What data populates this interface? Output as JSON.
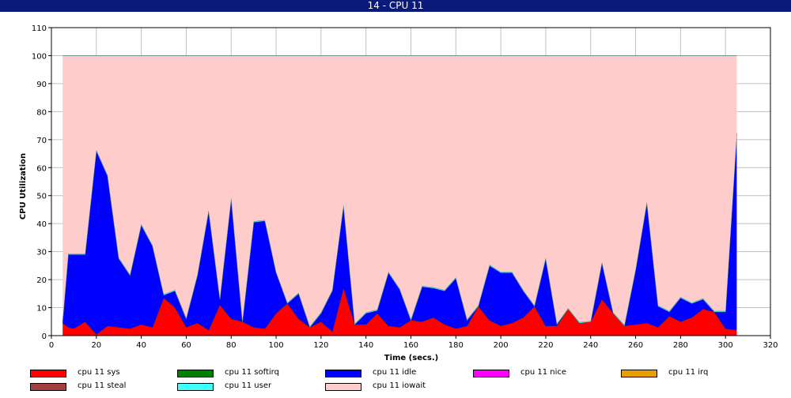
{
  "title": "14 - CPU 11",
  "chart_data": {
    "type": "area",
    "stacked": true,
    "ylabel": "CPU Utilization",
    "xlabel": "Time (secs.)",
    "xlim": [
      0,
      320
    ],
    "ylim": [
      0,
      110
    ],
    "xticks": [
      0,
      20,
      40,
      60,
      80,
      100,
      120,
      140,
      160,
      180,
      200,
      220,
      240,
      260,
      280,
      300,
      320
    ],
    "yticks": [
      0,
      10,
      20,
      30,
      40,
      50,
      60,
      70,
      80,
      90,
      100,
      110
    ],
    "grid": true,
    "legend_position": "bottom",
    "x": [
      5,
      7.5,
      10,
      15,
      20,
      25,
      30,
      35,
      40,
      45,
      50,
      55,
      60,
      65,
      70,
      75,
      80,
      85,
      90,
      95,
      100,
      105,
      110,
      115,
      120,
      125,
      130,
      135,
      140,
      145,
      150,
      155,
      160,
      165,
      170,
      175,
      180,
      185,
      190,
      195,
      200,
      205,
      210,
      215,
      220,
      225,
      230,
      235,
      240,
      245,
      250,
      255,
      260,
      265,
      270,
      275,
      280,
      285,
      290,
      295,
      300,
      305
    ],
    "series": [
      {
        "name": "cpu 11 sys",
        "color": "#ff0000",
        "values": [
          4.5,
          3,
          2.5,
          5,
          0.5,
          3.5,
          3,
          2.5,
          4,
          3,
          13.5,
          10,
          3,
          4.5,
          2,
          11,
          6,
          5,
          3,
          2.5,
          8,
          11.5,
          6,
          3,
          5,
          1.5,
          17,
          4,
          4,
          8,
          3.5,
          3,
          5.5,
          5,
          6.5,
          4,
          2.5,
          3.5,
          10.5,
          5.5,
          3.5,
          4.5,
          6.5,
          10.5,
          3.5,
          3.5,
          9.5,
          4.5,
          5,
          13,
          8,
          3.5,
          4,
          4.5,
          3,
          7,
          5,
          6.5,
          9.5,
          8.5,
          2.5,
          2
        ]
      },
      {
        "name": "cpu 11 softirq",
        "color": "#008000",
        "values": [
          0,
          0,
          0,
          0,
          0,
          0,
          0,
          0,
          0,
          0,
          0,
          0,
          0,
          0,
          0,
          0,
          0,
          0,
          0,
          0,
          0,
          0,
          0,
          0,
          0,
          0,
          0,
          0,
          0,
          0,
          0,
          0,
          0,
          0,
          0,
          0,
          0,
          0,
          0,
          0,
          0,
          0,
          0,
          0,
          0,
          0,
          0,
          0,
          0,
          0,
          0,
          0,
          0,
          0,
          0,
          0,
          0,
          0,
          0,
          0,
          0,
          0
        ]
      },
      {
        "name": "cpu 11 idle",
        "color": "#0000ff",
        "values": [
          0.5,
          26,
          26.5,
          24,
          65.5,
          53.5,
          24.5,
          19,
          35.5,
          29,
          1,
          6,
          3,
          17,
          42.5,
          2,
          43,
          0,
          37.5,
          38.5,
          14.5,
          0,
          9,
          0,
          3,
          14.5,
          29.5,
          0,
          4,
          1,
          19,
          13.5,
          0,
          12.5,
          10.5,
          12,
          18,
          2,
          0,
          19.5,
          19,
          18,
          9.5,
          0,
          24,
          0.5,
          0,
          0,
          0,
          13,
          0,
          0,
          19.5,
          43,
          7.5,
          1.5,
          8.5,
          5,
          3.5,
          0,
          6,
          70
        ]
      },
      {
        "name": "cpu 11 nice",
        "color": "#ff00ff",
        "values": [
          0,
          0,
          0,
          0,
          0,
          0,
          0,
          0,
          0,
          0,
          0,
          0,
          0,
          0,
          0,
          0,
          0,
          0,
          0,
          0,
          0,
          0,
          0,
          0,
          0,
          0,
          0,
          0,
          0,
          0,
          0,
          0,
          0,
          0,
          0,
          0,
          0,
          0,
          0,
          0,
          0,
          0,
          0,
          0,
          0,
          0,
          0,
          0,
          0,
          0,
          0,
          0,
          0,
          0,
          0,
          0,
          0,
          0,
          0,
          0,
          0,
          0
        ]
      },
      {
        "name": "cpu 11 irq",
        "color": "#e8a000",
        "values": [
          0,
          0,
          0,
          0,
          0,
          0,
          0,
          0,
          0,
          0,
          0,
          0,
          0,
          0,
          0,
          0,
          0,
          0,
          0,
          0,
          0,
          0,
          0,
          0,
          0,
          0,
          0,
          0,
          0,
          0,
          0,
          0,
          0,
          0,
          0,
          0,
          0,
          0,
          0,
          0,
          0,
          0,
          0,
          0,
          0,
          0,
          0,
          0,
          0,
          0,
          0,
          0,
          0,
          0,
          0,
          0,
          0,
          0,
          0,
          0,
          0,
          0
        ]
      },
      {
        "name": "cpu 11 steal",
        "color": "#a04040",
        "values": [
          0,
          0,
          0,
          0,
          0,
          0,
          0,
          0,
          0,
          0,
          0,
          0,
          0,
          0,
          0,
          0,
          0,
          0,
          0,
          0,
          0,
          0,
          0,
          0,
          0,
          0,
          0,
          0,
          0,
          0,
          0,
          0,
          0,
          0,
          0,
          0,
          0,
          0,
          0,
          0,
          0,
          0,
          0,
          0,
          0,
          0,
          0,
          0,
          0,
          0,
          0,
          0,
          0,
          0,
          0,
          0,
          0,
          0,
          0,
          0,
          0,
          0
        ]
      },
      {
        "name": "cpu 11 user",
        "color": "#40ffff",
        "values": [
          0.3,
          0.3,
          0.3,
          0.3,
          0.3,
          0.3,
          0.3,
          0.3,
          0.3,
          0.3,
          0.3,
          0.3,
          0.3,
          0.3,
          0.3,
          0.3,
          0.3,
          0.3,
          0.3,
          0.3,
          0.3,
          0.3,
          0.3,
          0.3,
          0.3,
          0.3,
          0.3,
          0.3,
          0.3,
          0.3,
          0.3,
          0.3,
          0.3,
          0.3,
          0.3,
          0.3,
          0.3,
          0.3,
          0.3,
          0.3,
          0.3,
          0.3,
          0.3,
          0.3,
          0.3,
          0.3,
          0.3,
          0.3,
          0.3,
          0.3,
          0.3,
          0.3,
          0.3,
          0.3,
          0.3,
          0.3,
          0.3,
          0.3,
          0.3,
          0.3,
          0.3,
          0.3
        ]
      },
      {
        "name": "cpu 11 iowait",
        "color": "#ffcccc",
        "values": [
          94.7,
          70.7,
          70.7,
          70.7,
          33.7,
          42.7,
          72.2,
          78.2,
          60.2,
          67.7,
          85.2,
          83.7,
          93.7,
          78.2,
          55.2,
          86.7,
          50.7,
          94.7,
          59.2,
          58.7,
          77.2,
          88.2,
          84.7,
          96.7,
          91.7,
          83.7,
          53.2,
          95.7,
          91.7,
          90.7,
          77.2,
          83.2,
          94.2,
          82.2,
          82.7,
          83.7,
          79.2,
          94.2,
          89.2,
          74.7,
          77.2,
          77.2,
          83.7,
          89.2,
          72.2,
          95.7,
          90.2,
          95.2,
          94.7,
          73.7,
          91.7,
          96.2,
          76.2,
          52.2,
          89.2,
          91.2,
          86.2,
          88.2,
          86.7,
          91.2,
          91.2,
          27.7
        ]
      }
    ]
  }
}
